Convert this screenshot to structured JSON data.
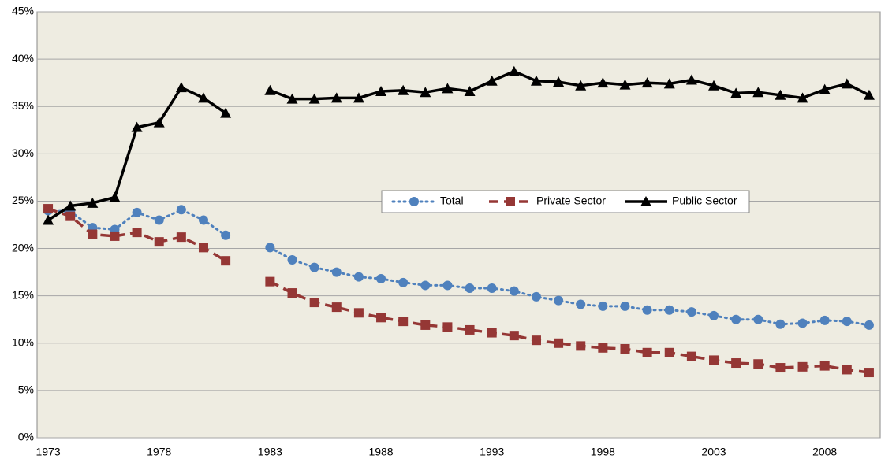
{
  "chart_data": {
    "type": "line",
    "categories": [
      "1973",
      null,
      null,
      null,
      null,
      "1978",
      null,
      null,
      null,
      null,
      "1983",
      null,
      null,
      null,
      null,
      "1988",
      null,
      null,
      null,
      null,
      "1993",
      null,
      null,
      null,
      null,
      "1998",
      null,
      null,
      null,
      null,
      "2003",
      null,
      null,
      null,
      null,
      "2008",
      null,
      null
    ],
    "series": [
      {
        "name": "Total",
        "color": "#4f81bd",
        "line_style": "dotted",
        "marker": "circle",
        "values": [
          24.0,
          23.9,
          22.2,
          22.0,
          23.8,
          23.0,
          24.1,
          23.0,
          21.4,
          null,
          20.1,
          18.8,
          18.0,
          17.5,
          17.0,
          16.8,
          16.4,
          16.1,
          16.1,
          15.8,
          15.8,
          15.5,
          14.9,
          14.5,
          14.1,
          13.9,
          13.9,
          13.5,
          13.5,
          13.3,
          12.9,
          12.5,
          12.5,
          12.0,
          12.1,
          12.4,
          12.3,
          11.9
        ]
      },
      {
        "name": "Private Sector",
        "color": "#953735",
        "line_style": "dashed",
        "marker": "square",
        "values": [
          24.2,
          23.4,
          21.5,
          21.3,
          21.7,
          20.7,
          21.2,
          20.1,
          18.7,
          null,
          16.5,
          15.3,
          14.3,
          13.8,
          13.2,
          12.7,
          12.3,
          11.9,
          11.7,
          11.4,
          11.1,
          10.8,
          10.3,
          10.0,
          9.7,
          9.5,
          9.4,
          9.0,
          9.0,
          8.6,
          8.2,
          7.9,
          7.8,
          7.4,
          7.5,
          7.6,
          7.2,
          6.9
        ]
      },
      {
        "name": "Public Sector",
        "color": "#000000",
        "line_style": "solid",
        "marker": "triangle",
        "values": [
          23.0,
          24.5,
          24.8,
          25.4,
          32.8,
          33.3,
          37.0,
          35.9,
          34.3,
          null,
          36.7,
          35.8,
          35.8,
          35.9,
          35.9,
          36.6,
          36.7,
          36.5,
          36.9,
          36.6,
          37.7,
          38.7,
          37.7,
          37.6,
          37.2,
          37.5,
          37.3,
          37.5,
          37.4,
          37.8,
          37.2,
          36.4,
          36.5,
          36.2,
          35.9,
          36.8,
          37.4,
          36.2
        ]
      }
    ],
    "ylim": [
      0,
      45
    ],
    "yticks": [
      {
        "value": 0,
        "label": "0%"
      },
      {
        "value": 5,
        "label": "5%"
      },
      {
        "value": 10,
        "label": "10%"
      },
      {
        "value": 15,
        "label": "15%"
      },
      {
        "value": 20,
        "label": "20%"
      },
      {
        "value": 25,
        "label": "25%"
      },
      {
        "value": 30,
        "label": "30%"
      },
      {
        "value": 35,
        "label": "35%"
      },
      {
        "value": 40,
        "label": "40%"
      },
      {
        "value": 45,
        "label": "45%"
      }
    ],
    "grid": true,
    "plot_background": "#eeece1",
    "legend": "center"
  }
}
